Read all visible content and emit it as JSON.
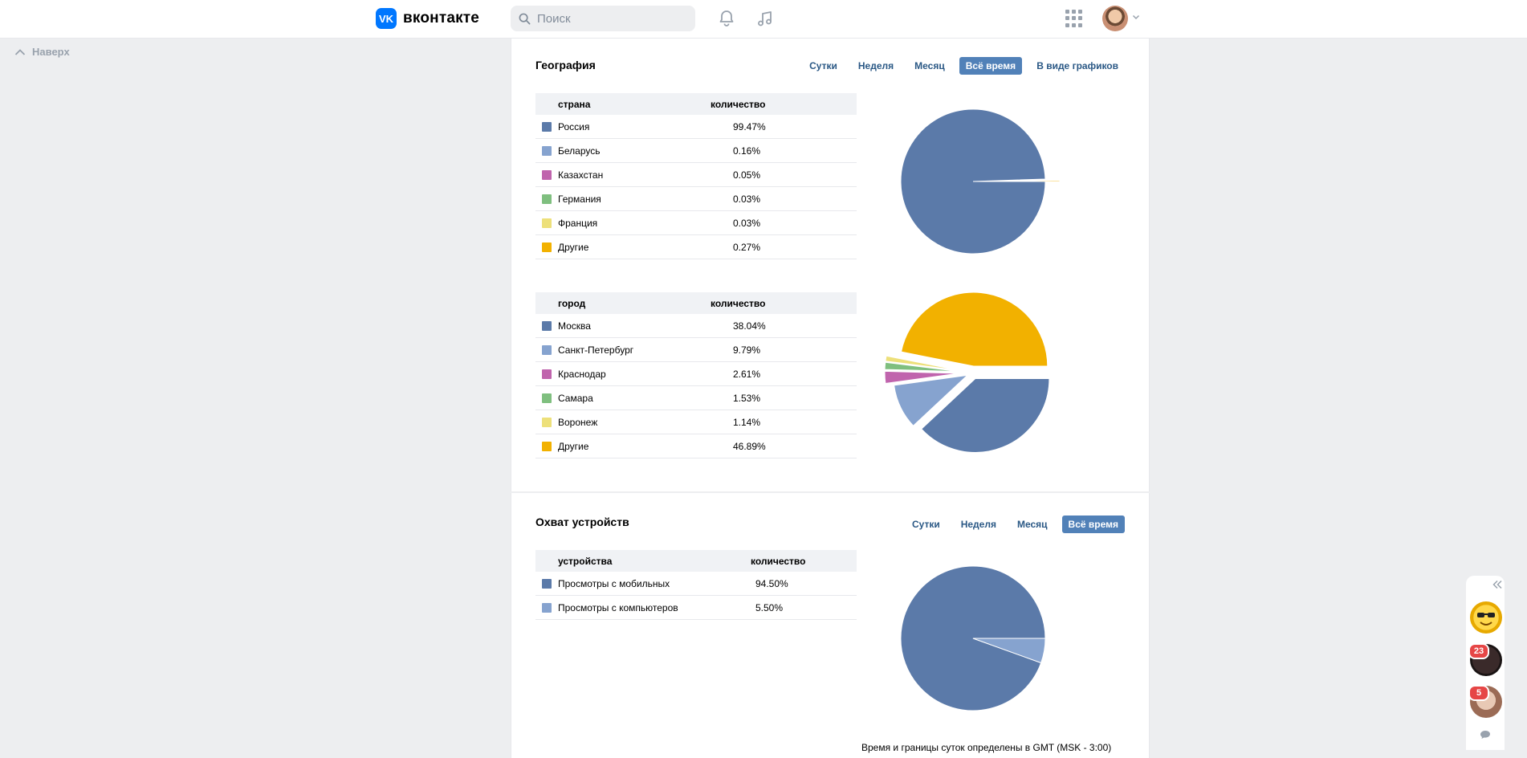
{
  "header": {
    "logo_mark": "VK",
    "logo_text": "вконтакте",
    "search_placeholder": "Поиск"
  },
  "to_top_label": "Наверх",
  "geography": {
    "title": "География",
    "tabs": [
      "Сутки",
      "Неделя",
      "Месяц",
      "Всё время",
      "В виде графиков"
    ],
    "active_tab": "Всё время",
    "country_table": {
      "col1": "страна",
      "col2": "количество",
      "rows": [
        {
          "name": "Россия",
          "value": "99.47%",
          "color": "#5b7aa9"
        },
        {
          "name": "Беларусь",
          "value": "0.16%",
          "color": "#86a3cf"
        },
        {
          "name": "Казахстан",
          "value": "0.05%",
          "color": "#c064ad"
        },
        {
          "name": "Германия",
          "value": "0.03%",
          "color": "#7fbf7f"
        },
        {
          "name": "Франция",
          "value": "0.03%",
          "color": "#ede07a"
        },
        {
          "name": "Другие",
          "value": "0.27%",
          "color": "#f2b100"
        }
      ]
    },
    "city_table": {
      "col1": "город",
      "col2": "количество",
      "rows": [
        {
          "name": "Москва",
          "value": "38.04%",
          "color": "#5b7aa9"
        },
        {
          "name": "Санкт-Петербург",
          "value": "9.79%",
          "color": "#86a3cf"
        },
        {
          "name": "Краснодар",
          "value": "2.61%",
          "color": "#c064ad"
        },
        {
          "name": "Самара",
          "value": "1.53%",
          "color": "#7fbf7f"
        },
        {
          "name": "Воронеж",
          "value": "1.14%",
          "color": "#ede07a"
        },
        {
          "name": "Другие",
          "value": "46.89%",
          "color": "#f2b100"
        }
      ]
    }
  },
  "devices": {
    "title": "Охват устройств",
    "tabs": [
      "Сутки",
      "Неделя",
      "Месяц",
      "Всё время"
    ],
    "active_tab": "Всё время",
    "table": {
      "col1": "устройства",
      "col2": "количество",
      "rows": [
        {
          "name": "Просмотры с мобильных",
          "value": "94.50%",
          "color": "#5b7aa9"
        },
        {
          "name": "Просмотры с компьютеров",
          "value": "5.50%",
          "color": "#86a3cf"
        }
      ]
    },
    "footnote": "Время и границы суток определены в GMT (MSK - 3:00)"
  },
  "right_bar": {
    "badges": [
      "23",
      "5"
    ]
  },
  "chart_data": [
    {
      "type": "pie",
      "title": "",
      "labels": [
        "Россия",
        "Беларусь",
        "Казахстан",
        "Германия",
        "Франция",
        "Другие"
      ],
      "values": [
        99.47,
        0.16,
        0.05,
        0.03,
        0.03,
        0.27
      ],
      "colors": [
        "#5b7aa9",
        "#86a3cf",
        "#c064ad",
        "#7fbf7f",
        "#ede07a",
        "#f2b100"
      ]
    },
    {
      "type": "pie",
      "title": "",
      "labels": [
        "Москва",
        "Санкт-Петербург",
        "Краснодар",
        "Самара",
        "Воронеж",
        "Другие"
      ],
      "values": [
        38.04,
        9.79,
        2.61,
        1.53,
        1.14,
        46.89
      ],
      "colors": [
        "#5b7aa9",
        "#86a3cf",
        "#c064ad",
        "#7fbf7f",
        "#ede07a",
        "#f2b100"
      ]
    },
    {
      "type": "pie",
      "title": "",
      "labels": [
        "Просмотры с мобильных",
        "Просмотры с компьютеров"
      ],
      "values": [
        94.5,
        5.5
      ],
      "colors": [
        "#5b7aa9",
        "#86a3cf"
      ]
    }
  ]
}
